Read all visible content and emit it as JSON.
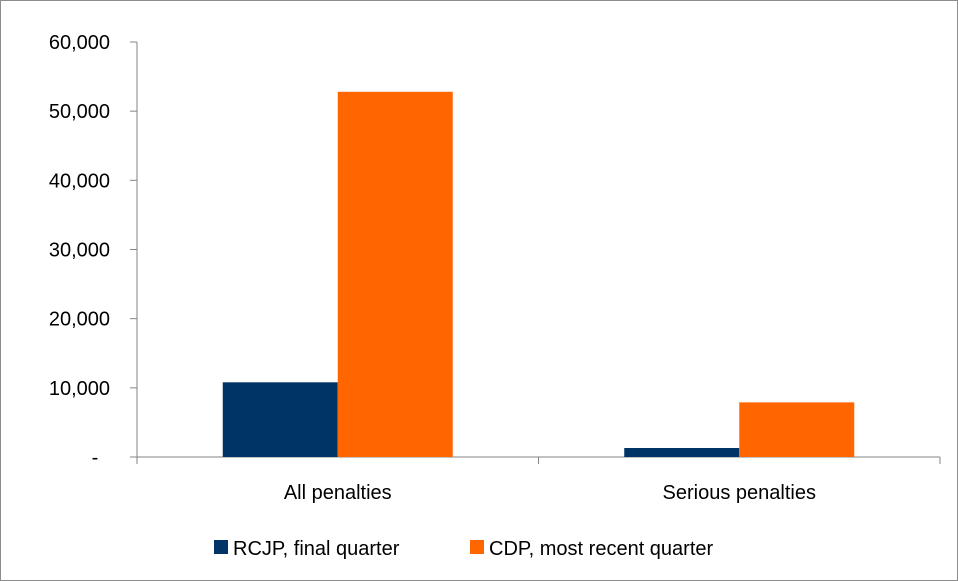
{
  "chart_data": {
    "type": "bar",
    "categories": [
      "All penalties",
      "Serious penalties"
    ],
    "series": [
      {
        "name": "RCJP, final quarter",
        "color": "#003366",
        "values": [
          10800,
          1300
        ]
      },
      {
        "name": "CDP, most recent quarter",
        "color": "#ff6600",
        "values": [
          52800,
          7900
        ]
      }
    ],
    "ylim": [
      0,
      60000
    ],
    "y_ticks": [
      0,
      10000,
      20000,
      30000,
      40000,
      50000,
      60000
    ],
    "y_tick_labels": [
      "-",
      "10,000",
      "20,000",
      "30,000",
      "40,000",
      "50,000",
      "60,000"
    ],
    "grid": false,
    "legend_position": "bottom"
  }
}
